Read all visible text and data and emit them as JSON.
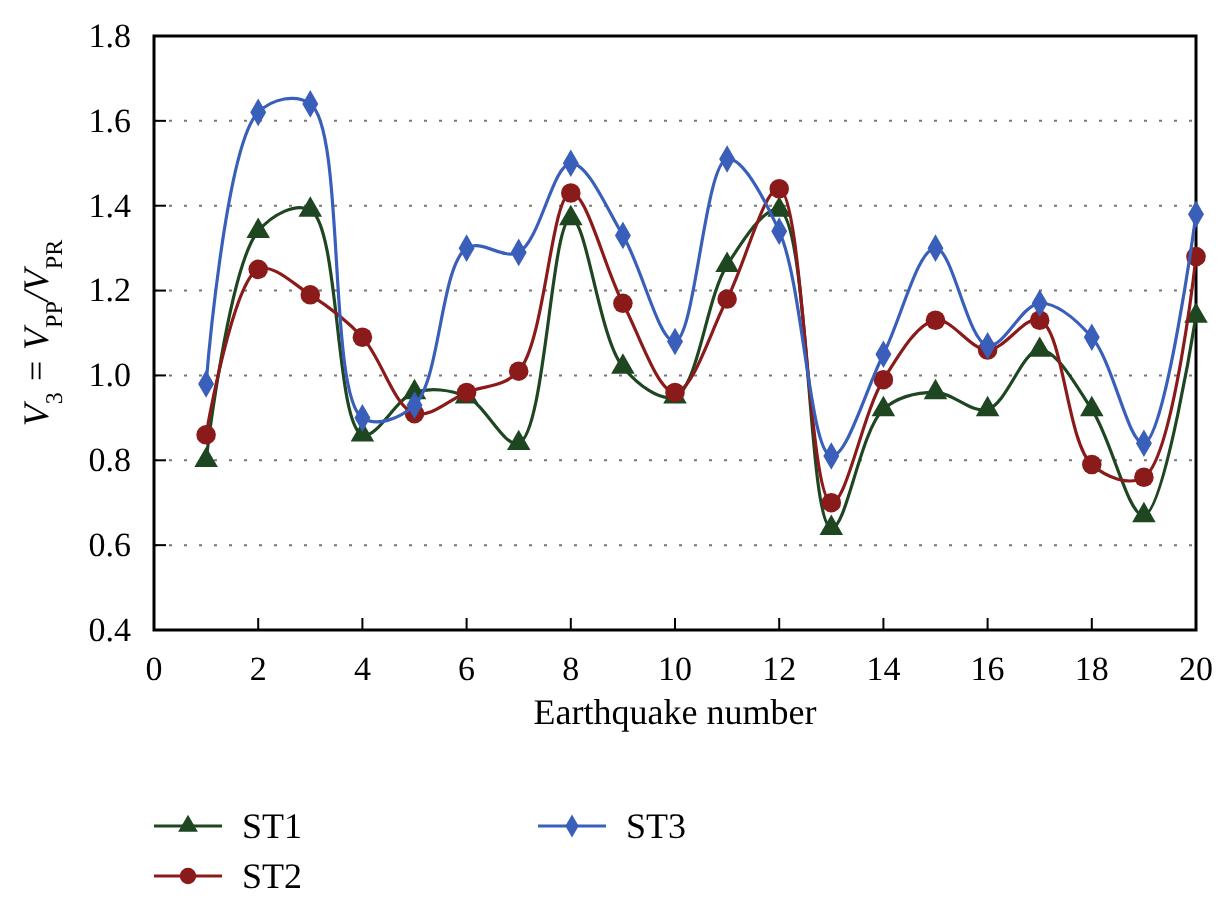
{
  "chart_data": {
    "type": "line",
    "xlabel": "Earthquake number",
    "ylabel": "V$_{3}$ = V$_{PP}$/V$_{PR}$",
    "x": [
      1,
      2,
      3,
      4,
      5,
      6,
      7,
      8,
      9,
      10,
      11,
      12,
      13,
      14,
      15,
      16,
      17,
      18,
      19,
      20
    ],
    "xlim": [
      0,
      20
    ],
    "xticks": [
      0,
      2,
      4,
      6,
      8,
      10,
      12,
      14,
      16,
      18,
      20
    ],
    "ylim": [
      0.4,
      1.8
    ],
    "yticks": [
      0.4,
      0.6,
      0.8,
      {
        "value": 1,
        "label": "1.0"
      },
      1.2,
      1.4,
      1.6,
      1.8
    ],
    "grid": "y",
    "legend": "bottom",
    "line_style": "solid",
    "series": [
      {
        "name": "ST1",
        "color": "#1e4620",
        "marker": "triangle",
        "values": [
          0.8,
          1.34,
          1.39,
          0.86,
          0.96,
          0.95,
          0.84,
          1.37,
          1.02,
          0.95,
          1.26,
          1.39,
          0.64,
          0.92,
          0.96,
          0.92,
          1.06,
          0.92,
          0.67,
          1.14
        ]
      },
      {
        "name": "ST2",
        "color": "#8b1a1a",
        "marker": "circle",
        "values": [
          0.86,
          1.25,
          1.19,
          1.09,
          0.91,
          0.96,
          1.01,
          1.43,
          1.17,
          0.96,
          1.18,
          1.44,
          0.7,
          0.99,
          1.13,
          1.06,
          1.13,
          0.79,
          0.76,
          1.28
        ]
      },
      {
        "name": "ST3",
        "color": "#3a5fba",
        "marker": "diamond",
        "values": [
          0.98,
          1.62,
          1.64,
          0.9,
          0.93,
          1.3,
          1.29,
          1.5,
          1.33,
          1.08,
          1.51,
          1.34,
          0.81,
          1.05,
          1.3,
          1.07,
          1.17,
          1.09,
          0.84,
          1.38
        ]
      }
    ]
  }
}
